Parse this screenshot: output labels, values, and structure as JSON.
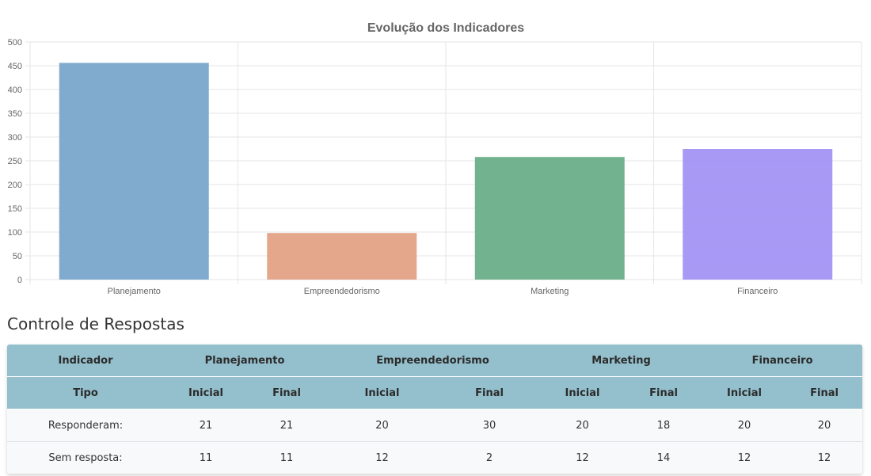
{
  "chart_data": {
    "type": "bar",
    "title": "Evolução dos Indicadores",
    "categories": [
      "Planejamento",
      "Empreendedorismo",
      "Marketing",
      "Financeiro"
    ],
    "values": [
      456,
      98,
      258,
      275
    ],
    "colors": [
      "#7aa6cb",
      "#e3a286",
      "#6aae88",
      "#a293f3"
    ],
    "ylim": [
      0,
      500
    ],
    "yticks": [
      0,
      50,
      100,
      150,
      200,
      250,
      300,
      350,
      400,
      450,
      500
    ],
    "grid": true,
    "legend": "none"
  },
  "controls": {
    "title": "Controle de Respostas",
    "header_row1": {
      "indicator": "Indicador",
      "groups": [
        "Planejamento",
        "Empreendedorismo",
        "Marketing",
        "Financeiro"
      ]
    },
    "header_row2": {
      "type": "Tipo",
      "cols": [
        "Inicial",
        "Final",
        "Inicial",
        "Final",
        "Inicial",
        "Final",
        "Inicial",
        "Final"
      ]
    },
    "rows": [
      {
        "label": "Responderam:",
        "values": [
          "21",
          "21",
          "20",
          "30",
          "20",
          "18",
          "20",
          "20"
        ]
      },
      {
        "label": "Sem resposta:",
        "values": [
          "11",
          "11",
          "12",
          "2",
          "12",
          "14",
          "12",
          "12"
        ]
      }
    ]
  }
}
